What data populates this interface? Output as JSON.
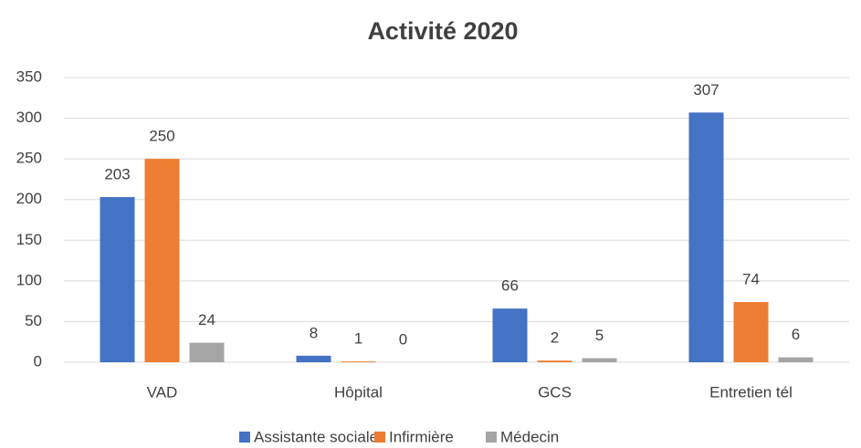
{
  "chart_data": {
    "type": "bar",
    "title": "Activité 2020",
    "categories": [
      "VAD",
      "Hôpital",
      "GCS",
      "Entretien tél"
    ],
    "series": [
      {
        "name": "Assistante sociale",
        "color": "#4472c4",
        "values": [
          203,
          8,
          66,
          307
        ]
      },
      {
        "name": "Infirmière",
        "color": "#ed7d31",
        "values": [
          250,
          1,
          2,
          74
        ]
      },
      {
        "name": "Médecin",
        "color": "#a5a5a5",
        "values": [
          24,
          0,
          5,
          6
        ]
      }
    ],
    "ylim": [
      0,
      350
    ],
    "yticks": [
      0,
      50,
      100,
      150,
      200,
      250,
      300,
      350
    ],
    "grid": true,
    "legend": "bottom"
  }
}
